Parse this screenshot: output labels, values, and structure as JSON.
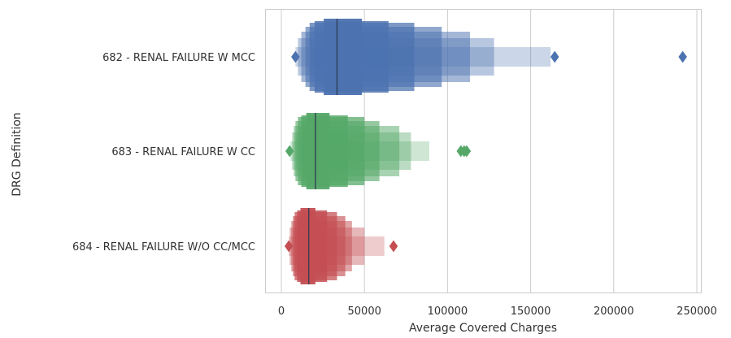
{
  "chart_data": {
    "type": "boxen",
    "orientation": "horizontal",
    "xlabel": "Average Covered Charges",
    "ylabel": "DRG Definition",
    "xlim": [
      -10000,
      255000
    ],
    "xticks": [
      0,
      50000,
      100000,
      150000,
      200000,
      250000
    ],
    "grid": "vertical",
    "categories": [
      "682 - RENAL FAILURE W MCC",
      "683 - RENAL FAILURE W CC",
      "684 - RENAL FAILURE W/O CC/MCC"
    ],
    "series": [
      {
        "category": "682 - RENAL FAILURE W MCC",
        "color": "#4c72b0",
        "median": 33500,
        "levels": [
          [
            25500,
            48500
          ],
          [
            20000,
            64500
          ],
          [
            17000,
            80000
          ],
          [
            14500,
            96500
          ],
          [
            12000,
            113500
          ],
          [
            10000,
            128000
          ],
          [
            8500,
            162000
          ]
        ],
        "outliers": [
          8500,
          164500,
          241500
        ]
      },
      {
        "category": "683 - RENAL FAILURE W CC",
        "color": "#55a868",
        "median": 20500,
        "levels": [
          [
            15000,
            29000
          ],
          [
            12000,
            40000
          ],
          [
            10000,
            50000
          ],
          [
            8500,
            59000
          ],
          [
            7500,
            71000
          ],
          [
            6500,
            78000
          ],
          [
            5500,
            89000
          ]
        ],
        "outliers": [
          5000,
          108000,
          110000,
          111500
        ]
      },
      {
        "category": "684 - RENAL FAILURE W/O CC/MCC",
        "color": "#c44e52",
        "median": 16500,
        "levels": [
          [
            11500,
            20500
          ],
          [
            9500,
            27500
          ],
          [
            8000,
            33500
          ],
          [
            7000,
            38500
          ],
          [
            6000,
            42500
          ],
          [
            5000,
            50000
          ],
          [
            4500,
            62000
          ]
        ],
        "outliers": [
          4500,
          67500
        ]
      }
    ]
  }
}
